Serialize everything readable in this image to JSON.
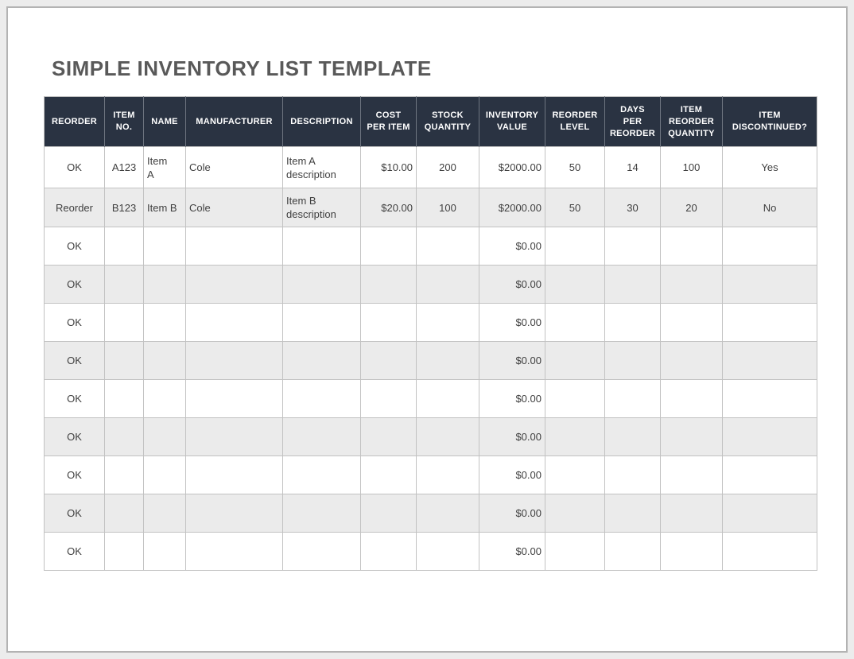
{
  "title": "SIMPLE INVENTORY LIST TEMPLATE",
  "table": {
    "columns": [
      {
        "label": "REORDER",
        "align": "center"
      },
      {
        "label": "ITEM\nNO.",
        "align": "center"
      },
      {
        "label": "NAME",
        "align": "left"
      },
      {
        "label": "MANUFACTURER",
        "align": "left"
      },
      {
        "label": "DESCRIPTION",
        "align": "left"
      },
      {
        "label": "COST\nPER ITEM",
        "align": "right"
      },
      {
        "label": "STOCK\nQUANTITY",
        "align": "center"
      },
      {
        "label": "INVENTORY\nVALUE",
        "align": "right"
      },
      {
        "label": "REORDER\nLEVEL",
        "align": "center"
      },
      {
        "label": "DAYS\nPER\nREORDER",
        "align": "center"
      },
      {
        "label": "ITEM\nREORDER\nQUANTITY",
        "align": "center"
      },
      {
        "label": "ITEM\nDISCONTINUED?",
        "align": "center"
      }
    ],
    "rows": [
      [
        "OK",
        "A123",
        "Item\nA",
        "Cole",
        "Item A\ndescription",
        "$10.00",
        "200",
        "$2000.00",
        "50",
        "14",
        "100",
        "Yes"
      ],
      [
        "Reorder",
        "B123",
        "Item B",
        "Cole",
        "Item B\ndescription",
        "$20.00",
        "100",
        "$2000.00",
        "50",
        "30",
        "20",
        "No"
      ],
      [
        "OK",
        "",
        "",
        "",
        "",
        "",
        "",
        "$0.00",
        "",
        "",
        "",
        ""
      ],
      [
        "OK",
        "",
        "",
        "",
        "",
        "",
        "",
        "$0.00",
        "",
        "",
        "",
        ""
      ],
      [
        "OK",
        "",
        "",
        "",
        "",
        "",
        "",
        "$0.00",
        "",
        "",
        "",
        ""
      ],
      [
        "OK",
        "",
        "",
        "",
        "",
        "",
        "",
        "$0.00",
        "",
        "",
        "",
        ""
      ],
      [
        "OK",
        "",
        "",
        "",
        "",
        "",
        "",
        "$0.00",
        "",
        "",
        "",
        ""
      ],
      [
        "OK",
        "",
        "",
        "",
        "",
        "",
        "",
        "$0.00",
        "",
        "",
        "",
        ""
      ],
      [
        "OK",
        "",
        "",
        "",
        "",
        "",
        "",
        "$0.00",
        "",
        "",
        "",
        ""
      ],
      [
        "OK",
        "",
        "",
        "",
        "",
        "",
        "",
        "$0.00",
        "",
        "",
        "",
        ""
      ],
      [
        "OK",
        "",
        "",
        "",
        "",
        "",
        "",
        "$0.00",
        "",
        "",
        "",
        ""
      ]
    ]
  },
  "colors": {
    "header_bg": "#2a3342",
    "header_text": "#ffffff",
    "header_sep": "#6e7580",
    "row_alt_bg": "#ebebeb",
    "body_border": "#c2c2c2",
    "body_text": "#3f3f3f",
    "title_color": "#595959",
    "page_border": "#b3b3b3",
    "outer_bg": "#ececec"
  }
}
